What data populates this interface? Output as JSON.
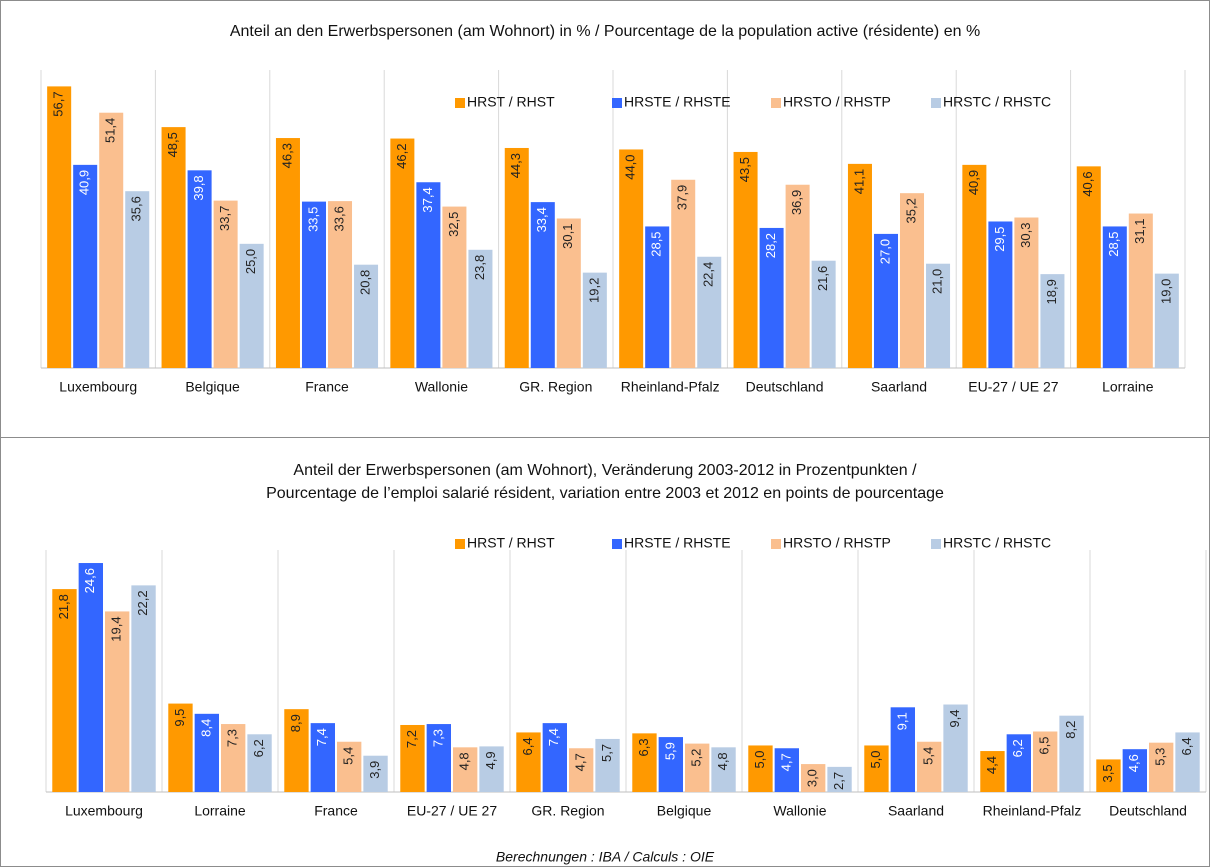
{
  "chart_data": [
    {
      "type": "bar",
      "title": [
        "Anteil an den Erwerbspersonen (am Wohnort) in % / Pourcentage de la population active (résidente) en %"
      ],
      "categories": [
        "Luxembourg",
        "Belgique",
        "France",
        "Wallonie",
        "GR. Region",
        "Rheinland-Pfalz",
        "Deutschland",
        "Saarland",
        "EU-27 / UE 27",
        "Lorraine"
      ],
      "series": [
        {
          "name": "HRST / RHST",
          "color": "#ff9900",
          "label_color": "#222222",
          "values": [
            56.7,
            48.5,
            46.3,
            46.2,
            44.3,
            44.0,
            43.5,
            41.1,
            40.9,
            40.6
          ],
          "value_labels": [
            "56,7",
            "48,5",
            "46,3",
            "46,2",
            "44,3",
            "44,0",
            "43,5",
            "41,1",
            "40,9",
            "40,6"
          ]
        },
        {
          "name": "HRSTE / RHSTE",
          "color": "#3366ff",
          "label_color": "#ffffff",
          "values": [
            40.9,
            39.8,
            33.5,
            37.4,
            33.4,
            28.5,
            28.2,
            27.0,
            29.5,
            28.5
          ],
          "value_labels": [
            "40,9",
            "39,8",
            "33,5",
            "37,4",
            "33,4",
            "28,5",
            "28,2",
            "27,0",
            "29,5",
            "28,5"
          ]
        },
        {
          "name": "HRSTO / RHSTP",
          "color": "#fabf8f",
          "label_color": "#222222",
          "values": [
            51.4,
            33.7,
            33.6,
            32.5,
            30.1,
            37.9,
            36.9,
            35.2,
            30.3,
            31.1
          ],
          "value_labels": [
            "51,4",
            "33,7",
            "33,6",
            "32,5",
            "30,1",
            "37,9",
            "36,9",
            "35,2",
            "30,3",
            "31,1"
          ]
        },
        {
          "name": "HRSTC / RHSTC",
          "color": "#b8cce4",
          "label_color": "#222222",
          "values": [
            35.6,
            25.0,
            20.8,
            23.8,
            19.2,
            22.4,
            21.6,
            21.0,
            18.9,
            19.0
          ],
          "value_labels": [
            "35,6",
            "25,0",
            "20,8",
            "23,8",
            "19,2",
            "22,4",
            "21,6",
            "21,0",
            "18,9",
            "19,0"
          ]
        }
      ],
      "ylim": [
        0,
        60
      ],
      "legend": "top"
    },
    {
      "type": "bar",
      "title": [
        "Anteil der Erwerbspersonen (am Wohnort), Veränderung 2003-2012 in Prozentpunkten /",
        "Pourcentage de l’emploi salarié résident, variation entre 2003 et 2012 en points de pourcentage"
      ],
      "categories": [
        "Luxembourg",
        "Lorraine",
        "France",
        "EU-27 / UE 27",
        "GR. Region",
        "Belgique",
        "Wallonie",
        "Saarland",
        "Rheinland-Pfalz",
        "Deutschland"
      ],
      "series": [
        {
          "name": "HRST / RHST",
          "color": "#ff9900",
          "label_color": "#222222",
          "values": [
            21.8,
            9.5,
            8.9,
            7.2,
            6.4,
            6.3,
            5.0,
            5.0,
            4.4,
            3.5
          ],
          "value_labels": [
            "21,8",
            "9,5",
            "8,9",
            "7,2",
            "6,4",
            "6,3",
            "5,0",
            "5,0",
            "4,4",
            "3,5"
          ]
        },
        {
          "name": "HRSTE / RHSTE",
          "color": "#3366ff",
          "label_color": "#ffffff",
          "values": [
            24.6,
            8.4,
            7.4,
            7.3,
            7.4,
            5.9,
            4.7,
            9.1,
            6.2,
            4.6
          ],
          "value_labels": [
            "24,6",
            "8,4",
            "7,4",
            "7,3",
            "7,4",
            "5,9",
            "4,7",
            "9,1",
            "6,2",
            "4,6"
          ]
        },
        {
          "name": "HRSTO / RHSTP",
          "color": "#fabf8f",
          "label_color": "#222222",
          "values": [
            19.4,
            7.3,
            5.4,
            4.8,
            4.7,
            5.2,
            3.0,
            5.4,
            6.5,
            5.3
          ],
          "value_labels": [
            "19,4",
            "7,3",
            "5,4",
            "4,8",
            "4,7",
            "5,2",
            "3,0",
            "5,4",
            "6,5",
            "5,3"
          ]
        },
        {
          "name": "HRSTC / RHSTC",
          "color": "#b8cce4",
          "label_color": "#222222",
          "values": [
            22.2,
            6.2,
            3.9,
            4.9,
            5.7,
            4.8,
            2.7,
            9.4,
            8.2,
            6.4
          ],
          "value_labels": [
            "22,2",
            "6,2",
            "3,9",
            "4,9",
            "5,7",
            "4,8",
            "2,7",
            "9,4",
            "8,2",
            "6,4"
          ]
        }
      ],
      "ylim": [
        0,
        26
      ],
      "legend": "top"
    }
  ],
  "source": "Berechnungen : IBA / Calculs : OIE"
}
